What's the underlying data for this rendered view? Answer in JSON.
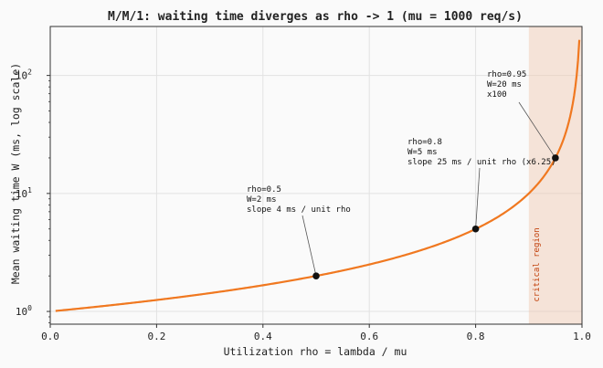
{
  "chart_data": {
    "type": "line",
    "title": "M/M/1: waiting time diverges as rho -> 1 (mu = 1000 req/s)",
    "xlabel": "Utilization rho = lambda / mu",
    "ylabel": "Mean waiting time W (ms, log scale)",
    "xlim": [
      0,
      1
    ],
    "ylim": [
      0.78,
      260
    ],
    "yscale": "log",
    "grid": true,
    "x_ticks": [
      "0.0",
      "0.2",
      "0.4",
      "0.6",
      "0.8",
      "1.0"
    ],
    "y_ticks": [
      {
        "value": 1,
        "base": "10",
        "exp": "0"
      },
      {
        "value": 10,
        "base": "10",
        "exp": "1"
      },
      {
        "value": 100,
        "base": "10",
        "exp": "2"
      }
    ],
    "curve": {
      "formula": "W = 1 / (1 - rho) ms",
      "x_start": 0.01,
      "x_end": 0.995,
      "color": "#f07820"
    },
    "shaded_region": {
      "x_from": 0.9,
      "x_to": 1.0,
      "label": "critical region",
      "color": "#f0c8b0"
    },
    "points": [
      {
        "x": 0.5,
        "y": 2,
        "lines": [
          "rho=0.5",
          "W=2 ms",
          "slope 4 ms / unit rho"
        ]
      },
      {
        "x": 0.8,
        "y": 5,
        "lines": [
          "rho=0.8",
          "W=5 ms",
          "slope 25 ms / unit rho (x6.25)"
        ]
      },
      {
        "x": 0.95,
        "y": 20,
        "lines": [
          "rho=0.95",
          "W=20 ms",
          "x100"
        ]
      }
    ]
  }
}
